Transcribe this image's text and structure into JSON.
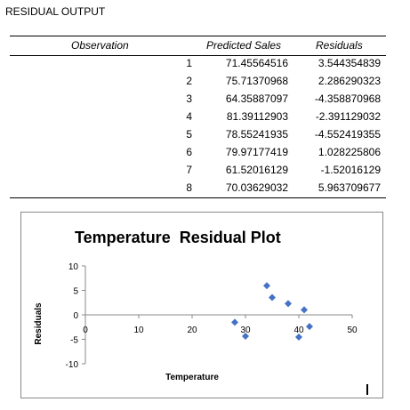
{
  "sheet": {
    "title": "RESIDUAL OUTPUT",
    "columns": [
      "Observation",
      "Predicted Sales",
      "Residuals"
    ],
    "rows": [
      {
        "obs": "1",
        "pred": "71.45564516",
        "res": "3.544354839"
      },
      {
        "obs": "2",
        "pred": "75.71370968",
        "res": "2.286290323"
      },
      {
        "obs": "3",
        "pred": "64.35887097",
        "res": "-4.358870968"
      },
      {
        "obs": "4",
        "pred": "81.39112903",
        "res": "-2.391129032"
      },
      {
        "obs": "5",
        "pred": "78.55241935",
        "res": "-4.552419355"
      },
      {
        "obs": "6",
        "pred": "79.97177419",
        "res": "1.028225806"
      },
      {
        "obs": "7",
        "pred": "61.52016129",
        "res": "-1.52016129"
      },
      {
        "obs": "8",
        "pred": "70.03629032",
        "res": "5.963709677"
      }
    ]
  },
  "chart_data": {
    "type": "scatter",
    "title": "Temperature  Residual Plot",
    "xlabel": "Temperature",
    "ylabel": "Residuals",
    "xlim": [
      0,
      50
    ],
    "ylim": [
      -10,
      10
    ],
    "x_ticks": [
      "0",
      "10",
      "20",
      "30",
      "40",
      "50"
    ],
    "y_ticks": [
      "10",
      "5",
      "0",
      "-5",
      "-10"
    ],
    "marker_color": "#4472c4",
    "grid": false,
    "points": [
      {
        "x": 28,
        "y": -1.52
      },
      {
        "x": 30,
        "y": -4.36
      },
      {
        "x": 34,
        "y": 5.96
      },
      {
        "x": 35,
        "y": 3.54
      },
      {
        "x": 38,
        "y": 2.29
      },
      {
        "x": 40,
        "y": -4.55
      },
      {
        "x": 41,
        "y": 1.03
      },
      {
        "x": 42,
        "y": -2.39
      }
    ]
  }
}
